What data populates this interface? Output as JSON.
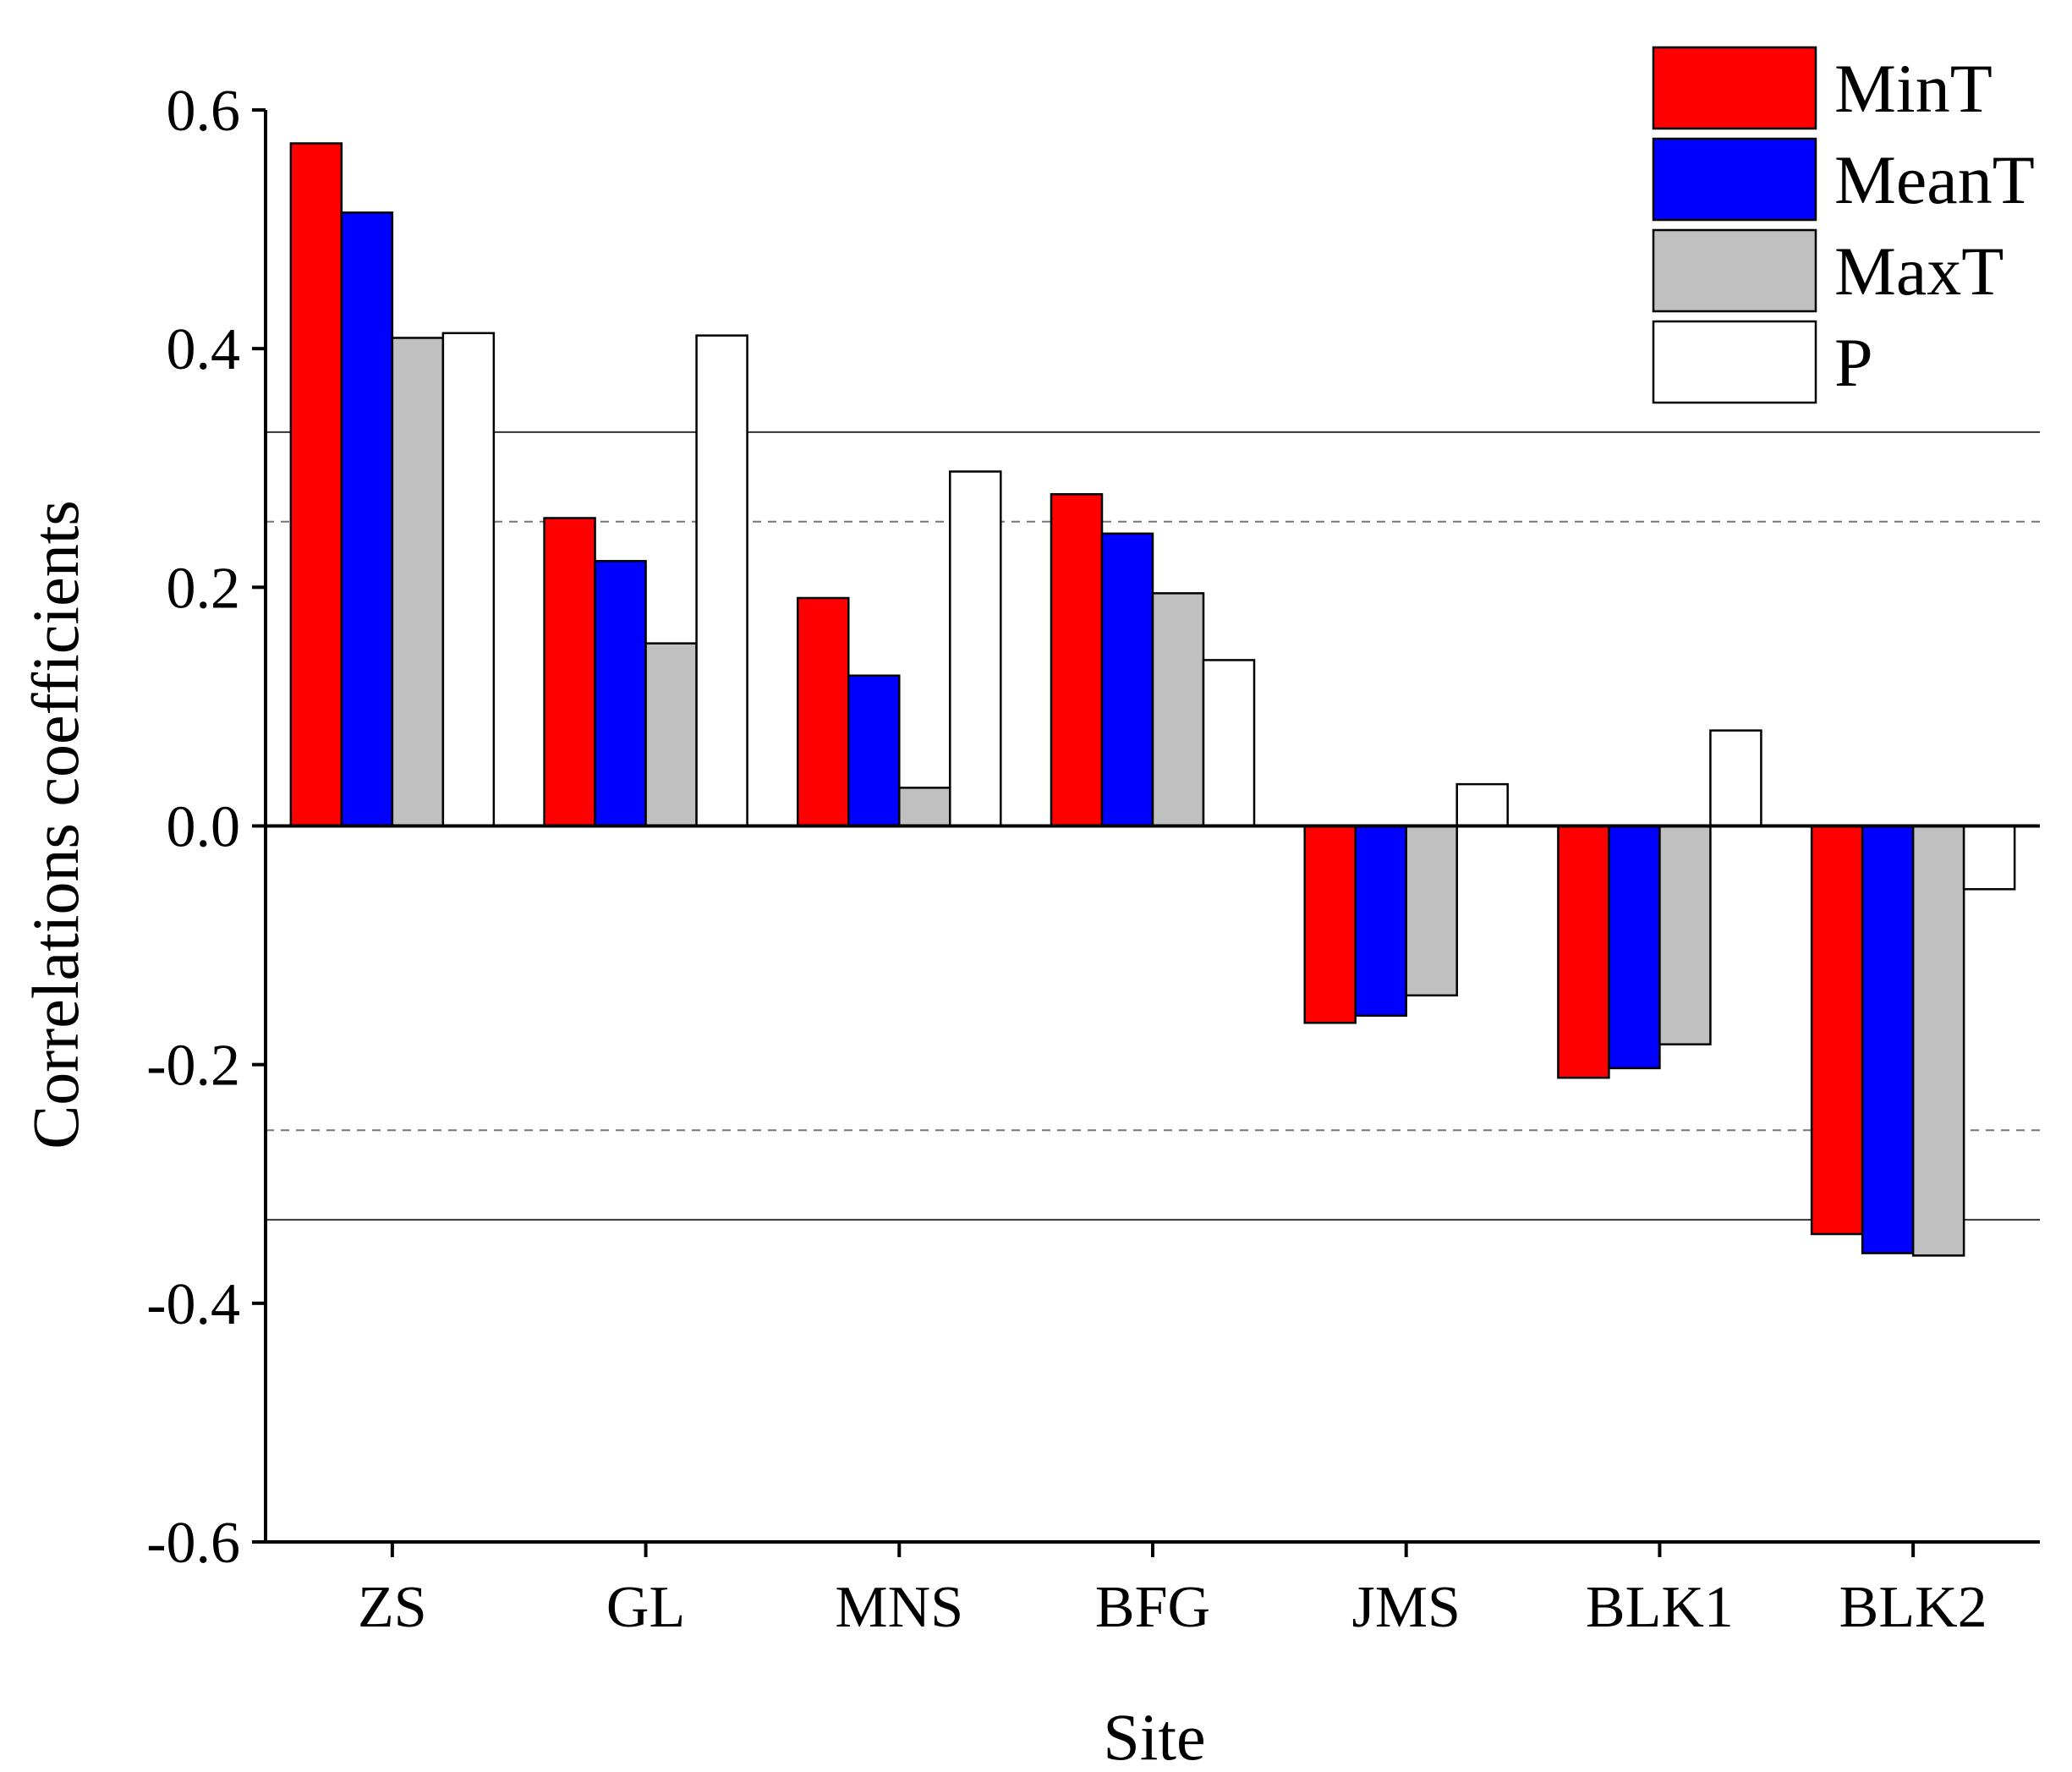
{
  "chart_data": {
    "type": "bar",
    "title": "",
    "xlabel": "Site",
    "ylabel": "Correlations coefficients",
    "categories": [
      "ZS",
      "GL",
      "MNS",
      "BFG",
      "JMS",
      "BLK1",
      "BLK2"
    ],
    "ylim": [
      -0.6,
      0.6
    ],
    "yticks": [
      {
        "value": 0.6,
        "label": "0.6"
      },
      {
        "value": 0.4,
        "label": "0.4"
      },
      {
        "value": 0.2,
        "label": "0.2"
      },
      {
        "value": 0.0,
        "label": "0.0"
      },
      {
        "value": -0.2,
        "label": "-0.2"
      },
      {
        "value": -0.4,
        "label": "-0.4"
      },
      {
        "value": -0.6,
        "label": "-0.6"
      }
    ],
    "series": [
      {
        "name": "MinT",
        "color": "#ff0000",
        "values": [
          0.572,
          0.258,
          0.191,
          0.278,
          -0.165,
          -0.211,
          -0.342
        ]
      },
      {
        "name": "MeanT",
        "color": "#0000ff",
        "values": [
          0.514,
          0.222,
          0.126,
          0.245,
          -0.159,
          -0.203,
          -0.358
        ]
      },
      {
        "name": "MaxT",
        "color": "#c0c0c0",
        "values": [
          0.409,
          0.153,
          0.032,
          0.195,
          -0.142,
          -0.183,
          -0.36
        ]
      },
      {
        "name": "P",
        "color": "#ffffff",
        "values": [
          0.413,
          0.411,
          0.297,
          0.139,
          0.035,
          0.08,
          -0.053
        ]
      }
    ],
    "reference_lines": [
      {
        "value": 0.33,
        "style": "solid"
      },
      {
        "value": 0.255,
        "style": "dashed"
      },
      {
        "value": -0.255,
        "style": "dashed"
      },
      {
        "value": -0.33,
        "style": "solid"
      }
    ],
    "legend_position": "top-right",
    "grid": false
  }
}
